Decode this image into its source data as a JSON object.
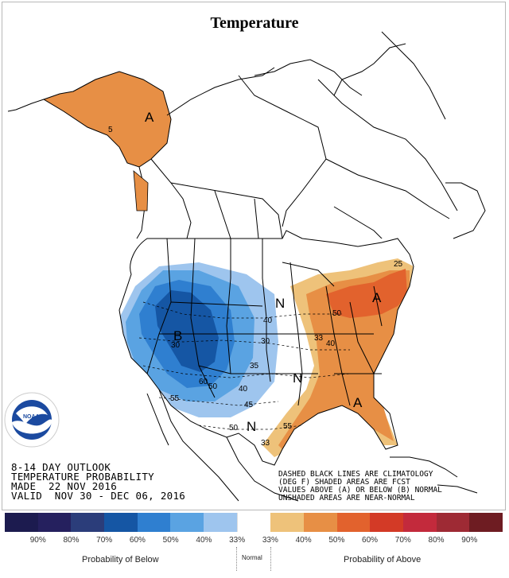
{
  "title": "Temperature",
  "outlook": {
    "line1": "8-14 DAY OUTLOOK",
    "line2": "TEMPERATURE PROBABILITY",
    "line3": "MADE  22 NOV 2016",
    "line4": "VALID  NOV 30 - DEC 06, 2016"
  },
  "note": {
    "line1": "DASHED BLACK LINES ARE CLIMATOLOGY",
    "line2": "(DEG F) SHADED AREAS ARE FCST",
    "line3": "VALUES ABOVE (A) OR BELOW (B) NORMAL",
    "line4": "UNSHADED AREAS ARE NEAR-NORMAL"
  },
  "map_labels": {
    "A_alaska": "A",
    "A_east": "A",
    "A_southeast": "A",
    "B_west": "B",
    "N_north": "N",
    "N_central": "N",
    "N_south": "N",
    "c5": "5",
    "c40a": "40",
    "c30a": "30",
    "c35": "35",
    "c40b": "40",
    "c45": "45",
    "c50a": "50",
    "c55a": "55",
    "c50b": "50",
    "c55b": "55",
    "c60": "60",
    "c30b": "30",
    "c33": "33",
    "c50c": "50",
    "c40c": "40",
    "c25": "25",
    "c33b": "33"
  },
  "legend": {
    "colors": [
      "#1c1b4f",
      "#25205e",
      "#2b3d7a",
      "#1556a4",
      "#2f7fd0",
      "#5aa3e2",
      "#9ec5ee",
      "#ffffff",
      "#eec27a",
      "#e78f45",
      "#e2622d",
      "#d33a26",
      "#c32a3c",
      "#9e2a34",
      "#6e1c22"
    ],
    "labels": [
      "90%",
      "80%",
      "70%",
      "60%",
      "50%",
      "40%",
      "33%",
      "33%",
      "40%",
      "50%",
      "60%",
      "70%",
      "80%",
      "90%"
    ],
    "below_caption": "Probability of Below",
    "normal_caption": "Normal",
    "above_caption": "Probability of Above"
  },
  "logo": {
    "agency": "NOAA",
    "ring_text": "NATIONAL OCEANIC AND ATMOSPHERIC ADMINISTRATION · U.S. DEPARTMENT OF COMMERCE"
  }
}
